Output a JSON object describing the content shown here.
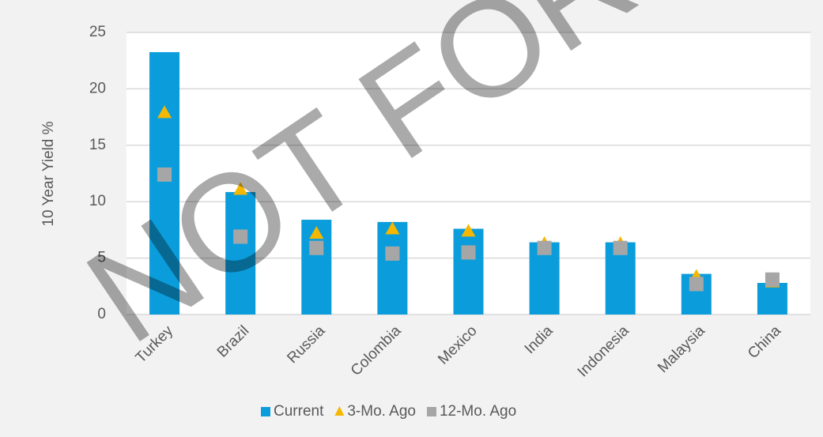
{
  "chart_data": {
    "type": "bar",
    "y_label": "10 Year Yield %",
    "watermark": "NOT FOR DI",
    "categories": [
      "Turkey",
      "Brazil",
      "Russia",
      "Colombia",
      "Mexico",
      "India",
      "Indonesia",
      "Malaysia",
      "China"
    ],
    "series": [
      {
        "name": "Current",
        "color": "#0b9ddb",
        "marker": "bar",
        "values": [
          23.25,
          10.85,
          8.4,
          8.2,
          7.6,
          6.4,
          6.4,
          3.6,
          2.8
        ]
      },
      {
        "name": "3-Mo. Ago",
        "color": "#f5b700",
        "marker": "triangle",
        "values": [
          17.9,
          11.1,
          7.2,
          7.6,
          7.4,
          6.3,
          6.3,
          3.4,
          2.9
        ]
      },
      {
        "name": "12-Mo. Ago",
        "color": "#a6a6a6",
        "marker": "square",
        "values": [
          12.4,
          6.9,
          5.9,
          5.4,
          5.5,
          5.9,
          5.9,
          2.7,
          3.1
        ]
      }
    ],
    "ylim": [
      0,
      25
    ],
    "yticks": [
      0,
      5,
      10,
      15,
      20,
      25
    ],
    "grid": true,
    "legend": "bottom"
  }
}
